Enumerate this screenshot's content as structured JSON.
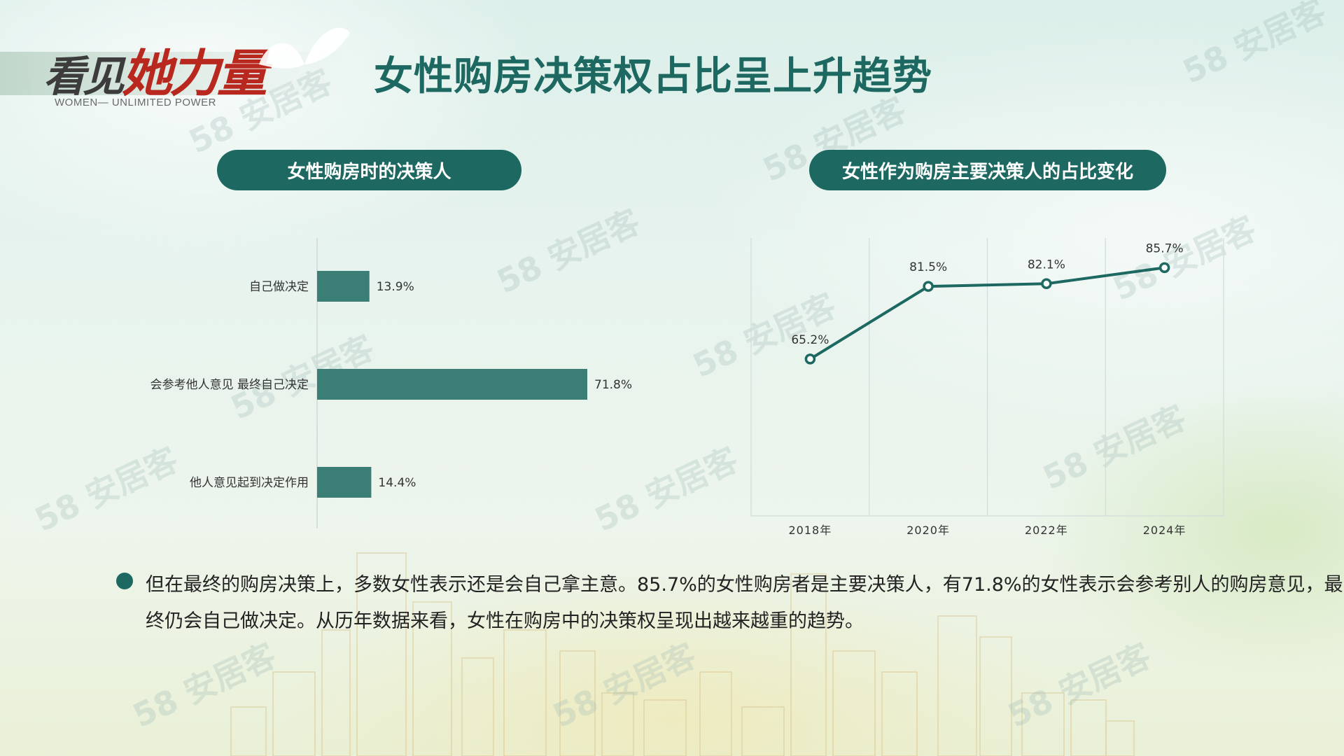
{
  "header": {
    "logo_main_part1": "看见",
    "logo_main_part2": "她力量",
    "logo_sub": "WOMEN— UNLIMITED POWER",
    "page_title": "女性购房决策权占比呈上升趋势"
  },
  "watermark": "58 安居客",
  "colors": {
    "accent": "#1d6861",
    "bar": "#3a7e76",
    "text": "#333333"
  },
  "left_panel": {
    "title": "女性购房时的决策人"
  },
  "right_panel": {
    "title": "女性作为购房主要决策人的占比变化"
  },
  "chart_data": [
    {
      "type": "bar",
      "orientation": "horizontal",
      "title": "女性购房时的决策人",
      "categories": [
        "自己做决定",
        "会参考他人意见 最终自己决定",
        "他人意见起到决定作用"
      ],
      "values": [
        13.9,
        71.8,
        14.4
      ],
      "data_labels": [
        "13.9%",
        "71.8%",
        "14.4%"
      ],
      "unit": "%",
      "xlim": [
        0,
        80
      ],
      "grid": false
    },
    {
      "type": "line",
      "title": "女性作为购房主要决策人的占比变化",
      "categories": [
        "2018年",
        "2020年",
        "2022年",
        "2024年"
      ],
      "values": [
        65.2,
        81.5,
        82.1,
        85.7
      ],
      "data_labels": [
        "65.2%",
        "81.5%",
        "82.1%",
        "85.7%"
      ],
      "unit": "%",
      "ylim": [
        30,
        90
      ],
      "grid": "vertical"
    }
  ],
  "description": {
    "text": "但在最终的购房决策上，多数女性表示还是会自己拿主意。85.7%的女性购房者是主要决策人，有71.8%的女性表示会参考别人的购房意见，最终仍会自己做决定。从历年数据来看，女性在购房中的决策权呈现出越来越重的趋势。"
  }
}
